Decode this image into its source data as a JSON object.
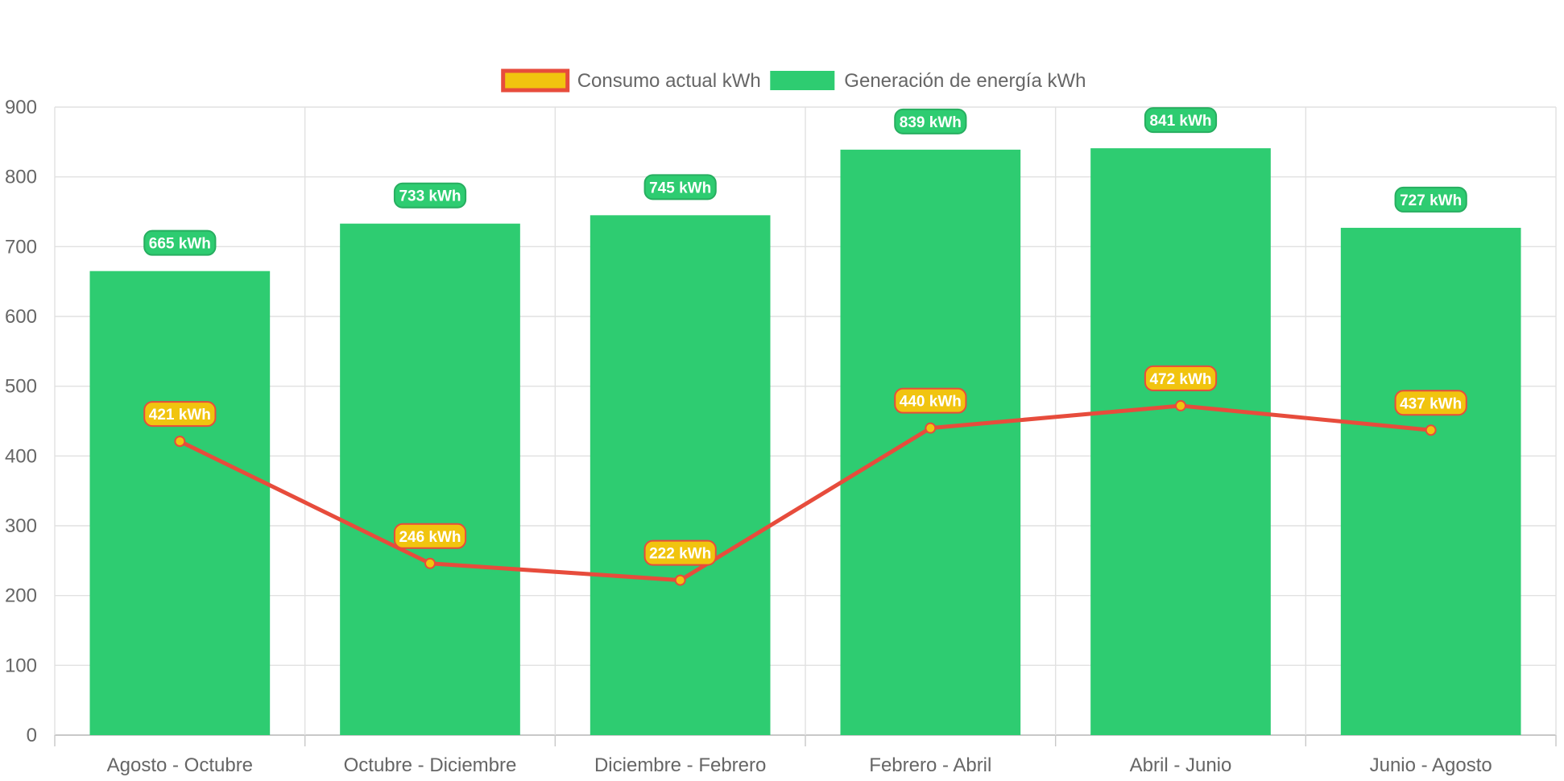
{
  "chart_data": {
    "type": "bar",
    "categories": [
      "Agosto - Octubre",
      "Octubre - Diciembre",
      "Diciembre - Febrero",
      "Febrero - Abril",
      "Abril - Junio",
      "Junio - Agosto"
    ],
    "series": [
      {
        "name": "Consumo actual kWh",
        "type": "line",
        "values": [
          421,
          246,
          222,
          440,
          472,
          437
        ],
        "color": "#E74C3C",
        "point_color": "#F1C40F",
        "value_labels": [
          "421 kWh",
          "246 kWh",
          "222 kWh",
          "440 kWh",
          "472 kWh",
          "437 kWh"
        ]
      },
      {
        "name": "Generación de energía kWh",
        "type": "bar",
        "values": [
          665,
          733,
          745,
          839,
          841,
          727
        ],
        "color": "#2ECC71",
        "value_labels": [
          "665 kWh",
          "733 kWh",
          "745 kWh",
          "839 kWh",
          "841 kWh",
          "727 kWh"
        ]
      }
    ],
    "ylim": [
      0,
      900
    ],
    "yticks": [
      "0",
      "100",
      "200",
      "300",
      "400",
      "500",
      "600",
      "700",
      "800",
      "900"
    ],
    "grid": true,
    "legend_position": "top"
  }
}
